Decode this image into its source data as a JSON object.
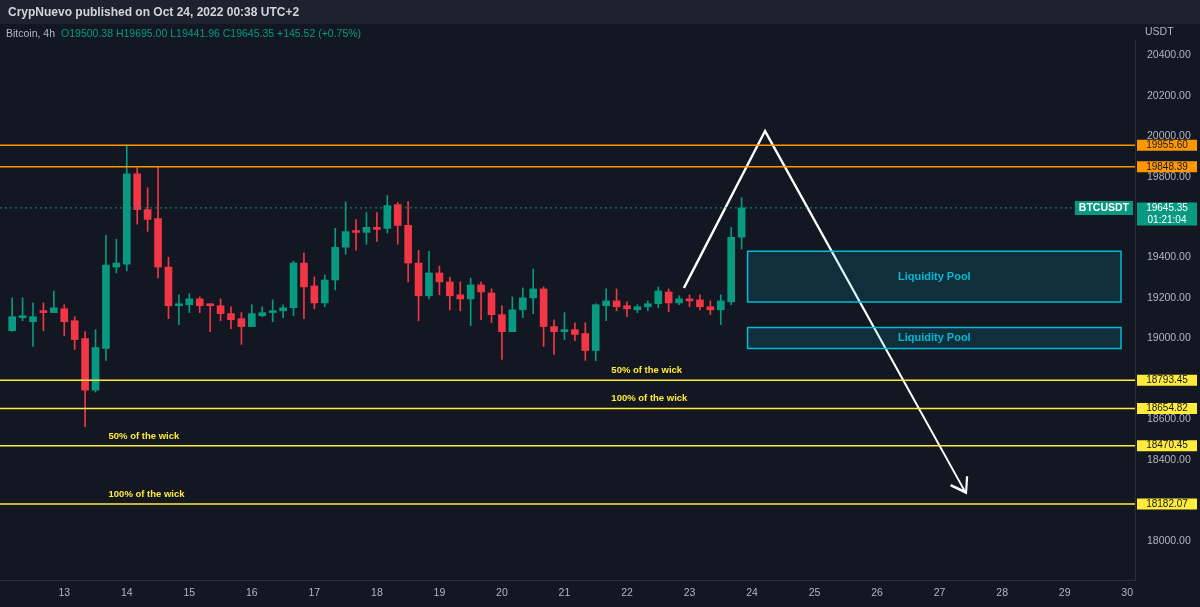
{
  "chart_data": {
    "type": "candlestick",
    "title": "Bitcoin, 4h",
    "subtitle": "O19500.38 H19695.00 L19441.96 C19645.35 +145.52 (+0.75%)",
    "ylabel": "USDT",
    "x": [
      "2022-10-12T04:00",
      "2022-10-12T08:00",
      "2022-10-12T12:00",
      "2022-10-12T16:00",
      "2022-10-12T20:00",
      "2022-10-13T00:00",
      "2022-10-13T04:00",
      "2022-10-13T08:00",
      "2022-10-13T12:00",
      "2022-10-13T16:00",
      "2022-10-13T20:00",
      "2022-10-14T00:00",
      "2022-10-14T04:00",
      "2022-10-14T08:00",
      "2022-10-14T12:00",
      "2022-10-14T16:00",
      "2022-10-14T20:00",
      "2022-10-15T00:00",
      "2022-10-15T04:00",
      "2022-10-15T08:00",
      "2022-10-15T12:00",
      "2022-10-15T16:00",
      "2022-10-15T20:00",
      "2022-10-16T00:00",
      "2022-10-16T04:00",
      "2022-10-16T08:00",
      "2022-10-16T12:00",
      "2022-10-16T16:00",
      "2022-10-16T20:00",
      "2022-10-17T00:00",
      "2022-10-17T04:00",
      "2022-10-17T08:00",
      "2022-10-17T12:00",
      "2022-10-17T16:00",
      "2022-10-17T20:00",
      "2022-10-18T00:00",
      "2022-10-18T04:00",
      "2022-10-18T08:00",
      "2022-10-18T12:00",
      "2022-10-18T16:00",
      "2022-10-18T20:00",
      "2022-10-19T00:00",
      "2022-10-19T04:00",
      "2022-10-19T08:00",
      "2022-10-19T12:00",
      "2022-10-19T16:00",
      "2022-10-19T20:00",
      "2022-10-20T00:00",
      "2022-10-20T04:00",
      "2022-10-20T08:00",
      "2022-10-20T12:00",
      "2022-10-20T16:00",
      "2022-10-20T20:00",
      "2022-10-21T00:00",
      "2022-10-21T04:00",
      "2022-10-21T08:00",
      "2022-10-21T12:00",
      "2022-10-21T16:00",
      "2022-10-21T20:00",
      "2022-10-22T00:00",
      "2022-10-22T04:00",
      "2022-10-22T08:00",
      "2022-10-22T12:00",
      "2022-10-22T16:00",
      "2022-10-22T20:00",
      "2022-10-23T00:00",
      "2022-10-23T04:00",
      "2022-10-23T08:00",
      "2022-10-23T12:00",
      "2022-10-23T16:00",
      "2022-10-23T20:00"
    ],
    "ohlc": [
      [
        19039,
        19201,
        19035,
        19108
      ],
      [
        19103,
        19201,
        19088,
        19108
      ],
      [
        19083,
        19176,
        18961,
        19108
      ],
      [
        19133,
        19176,
        19039,
        19128
      ],
      [
        19128,
        19235,
        19128,
        19152
      ],
      [
        19147,
        19167,
        19015,
        19083
      ],
      [
        19088,
        19108,
        18946,
        18995
      ],
      [
        19000,
        19034,
        18564,
        18745
      ],
      [
        18745,
        19044,
        18735,
        18956
      ],
      [
        18951,
        19510,
        18892,
        19363
      ],
      [
        19353,
        19490,
        19324,
        19373
      ],
      [
        19368,
        19955.6,
        19334,
        19814
      ],
      [
        19814,
        19845,
        19565,
        19637
      ],
      [
        19637,
        19745,
        19529,
        19588
      ],
      [
        19593,
        19848.39,
        19299,
        19353
      ],
      [
        19353,
        19402,
        19098,
        19162
      ],
      [
        19162,
        19216,
        19069,
        19172
      ],
      [
        19167,
        19221,
        19128,
        19196
      ],
      [
        19196,
        19206,
        19128,
        19162
      ],
      [
        19167,
        19172,
        19034,
        19162
      ],
      [
        19162,
        19196,
        19088,
        19123
      ],
      [
        19123,
        19157,
        19049,
        19093
      ],
      [
        19098,
        19128,
        18971,
        19059
      ],
      [
        19059,
        19167,
        19059,
        19123
      ],
      [
        19113,
        19157,
        19108,
        19128
      ],
      [
        19128,
        19191,
        19083,
        19137
      ],
      [
        19137,
        19167,
        19103,
        19152
      ],
      [
        19152,
        19382,
        19113,
        19373
      ],
      [
        19373,
        19422,
        19098,
        19255
      ],
      [
        19260,
        19304,
        19147,
        19176
      ],
      [
        19176,
        19314,
        19157,
        19289
      ],
      [
        19289,
        19544,
        19240,
        19451
      ],
      [
        19451,
        19676,
        19417,
        19529
      ],
      [
        19534,
        19588,
        19436,
        19524
      ],
      [
        19524,
        19622,
        19466,
        19549
      ],
      [
        19549,
        19622,
        19480,
        19539
      ],
      [
        19544,
        19706,
        19520,
        19657
      ],
      [
        19662,
        19672,
        19466,
        19559
      ],
      [
        19559,
        19677,
        19280,
        19373
      ],
      [
        19373,
        19436,
        19088,
        19211
      ],
      [
        19211,
        19431,
        19196,
        19324
      ],
      [
        19324,
        19358,
        19216,
        19280
      ],
      [
        19280,
        19304,
        19142,
        19211
      ],
      [
        19216,
        19280,
        19137,
        19196
      ],
      [
        19196,
        19299,
        19064,
        19265
      ],
      [
        19265,
        19280,
        19093,
        19230
      ],
      [
        19225,
        19245,
        19079,
        19118
      ],
      [
        19118,
        19162,
        18897,
        19034
      ],
      [
        19034,
        19206,
        19034,
        19142
      ],
      [
        19142,
        19250,
        19103,
        19201
      ],
      [
        19201,
        19343,
        19123,
        19245
      ],
      [
        19245,
        19255,
        18961,
        19059
      ],
      [
        19059,
        19093,
        18922,
        19034
      ],
      [
        19034,
        19128,
        18995,
        19044
      ],
      [
        19044,
        19078,
        18990,
        19020
      ],
      [
        19025,
        19078,
        18892,
        18941
      ],
      [
        18941,
        19172,
        18890,
        19167
      ],
      [
        19162,
        19245,
        19088,
        19186
      ],
      [
        19186,
        19245,
        19137,
        19157
      ],
      [
        19162,
        19181,
        19108,
        19147
      ],
      [
        19142,
        19167,
        19128,
        19157
      ],
      [
        19157,
        19186,
        19137,
        19172
      ],
      [
        19172,
        19255,
        19152,
        19235
      ],
      [
        19230,
        19245,
        19132,
        19176
      ],
      [
        19176,
        19211,
        19167,
        19196
      ],
      [
        19196,
        19216,
        19157,
        19186
      ],
      [
        19191,
        19216,
        19142,
        19157
      ],
      [
        19157,
        19186,
        19118,
        19142
      ],
      [
        19142,
        19216,
        19069,
        19186
      ],
      [
        19181,
        19549,
        19167,
        19500
      ],
      [
        19500.38,
        19695.0,
        19441.96,
        19645.35
      ]
    ],
    "colors": [
      "#089981",
      "#089981",
      "#089981",
      "#f23645",
      "#089981",
      "#f23645",
      "#f23645",
      "#f23645",
      "#089981",
      "#089981",
      "#089981",
      "#089981",
      "#f23645",
      "#f23645",
      "#f23645",
      "#f23645",
      "#089981",
      "#089981",
      "#f23645",
      "#f23645",
      "#f23645",
      "#f23645",
      "#f23645",
      "#089981",
      "#089981",
      "#089981",
      "#089981",
      "#089981",
      "#f23645",
      "#f23645",
      "#089981",
      "#089981",
      "#089981",
      "#f23645",
      "#089981",
      "#f23645",
      "#089981",
      "#f23645",
      "#f23645",
      "#f23645",
      "#089981",
      "#f23645",
      "#f23645",
      "#f23645",
      "#089981",
      "#f23645",
      "#f23645",
      "#f23645",
      "#089981",
      "#089981",
      "#089981",
      "#f23645",
      "#f23645",
      "#089981",
      "#f23645",
      "#f23645",
      "#089981",
      "#089981",
      "#f23645",
      "#f23645",
      "#089981",
      "#089981",
      "#089981",
      "#f23645",
      "#089981",
      "#f23645",
      "#f23645",
      "#f23645",
      "#089981",
      "#089981",
      "#089981"
    ],
    "xlim": [
      "2022-10-11T23:20",
      "2022-10-30T03:00"
    ],
    "xticks": [
      {
        "value": "2022-10-13",
        "label": "13"
      },
      {
        "value": "2022-10-14",
        "label": "14"
      },
      {
        "value": "2022-10-15",
        "label": "15"
      },
      {
        "value": "2022-10-16",
        "label": "16"
      },
      {
        "value": "2022-10-17",
        "label": "17"
      },
      {
        "value": "2022-10-18",
        "label": "18"
      },
      {
        "value": "2022-10-19",
        "label": "19"
      },
      {
        "value": "2022-10-20",
        "label": "20"
      },
      {
        "value": "2022-10-21",
        "label": "21"
      },
      {
        "value": "2022-10-22",
        "label": "22"
      },
      {
        "value": "2022-10-23",
        "label": "23"
      },
      {
        "value": "2022-10-24",
        "label": "24"
      },
      {
        "value": "2022-10-25",
        "label": "25"
      },
      {
        "value": "2022-10-26",
        "label": "26"
      },
      {
        "value": "2022-10-27",
        "label": "27"
      },
      {
        "value": "2022-10-28",
        "label": "28"
      },
      {
        "value": "2022-10-29",
        "label": "29"
      },
      {
        "value": "2022-10-30",
        "label": "30"
      }
    ],
    "ylim": [
      17805,
      20475
    ],
    "yticks": [
      {
        "value": 18000,
        "label": "18000.00"
      },
      {
        "value": 18400,
        "label": "18400.00"
      },
      {
        "value": 18600,
        "label": "18600.00"
      },
      {
        "value": 19000,
        "label": "19000.00"
      },
      {
        "value": 19200,
        "label": "19200.00"
      },
      {
        "value": 19400,
        "label": "19400.00"
      },
      {
        "value": 19800,
        "label": "19800.00"
      },
      {
        "value": 20000,
        "label": "20000.00"
      },
      {
        "value": 20200,
        "label": "20200.00"
      },
      {
        "value": 20400,
        "label": "20400.00"
      }
    ],
    "ref_lines": [
      {
        "axis": "y",
        "value": 19955.6,
        "label": "19955.60",
        "color": "#ff9800"
      },
      {
        "axis": "y",
        "value": 19848.39,
        "label": "19848.39",
        "color": "#ff9800"
      },
      {
        "axis": "y",
        "value": 19645.35,
        "label": "19645.35",
        "color": "#089981",
        "line_style": "dotted"
      },
      {
        "axis": "y",
        "value": 18793.45,
        "label": "18793.45",
        "color": "#ffeb3b"
      },
      {
        "axis": "y",
        "value": 18654.82,
        "label": "18654.82",
        "color": "#ffeb3b"
      },
      {
        "axis": "y",
        "value": 18470.45,
        "label": "18470.45",
        "color": "#ffeb3b"
      },
      {
        "axis": "y",
        "value": 18182.07,
        "label": "18182.07",
        "color": "#ffeb3b"
      }
    ],
    "bands": [
      {
        "axis": "y",
        "from": 19181,
        "to": 19431,
        "label": "Liquidity Pool",
        "color": "#00bcd4"
      },
      {
        "axis": "y",
        "from": 18951,
        "to": 19054,
        "label": "Liquidity Pool",
        "color": "#00bcd4"
      }
    ],
    "annotations": [
      "CrypNuevo published on Oct 24, 2022 00:38 UTC+2",
      "BTCUSDT",
      "01:21:04",
      {
        "text": "50% of the wick",
        "x": "2022-10-21T18:00",
        "y": 18793.45
      },
      {
        "text": "100% of the wick",
        "x": "2022-10-21T18:00",
        "y": 18654.82
      },
      {
        "text": "50% of the wick",
        "x": "2022-10-13T17:00",
        "y": 18470.45
      },
      {
        "text": "100% of the wick",
        "x": "2022-10-13T17:00",
        "y": 18182.07
      }
    ]
  }
}
